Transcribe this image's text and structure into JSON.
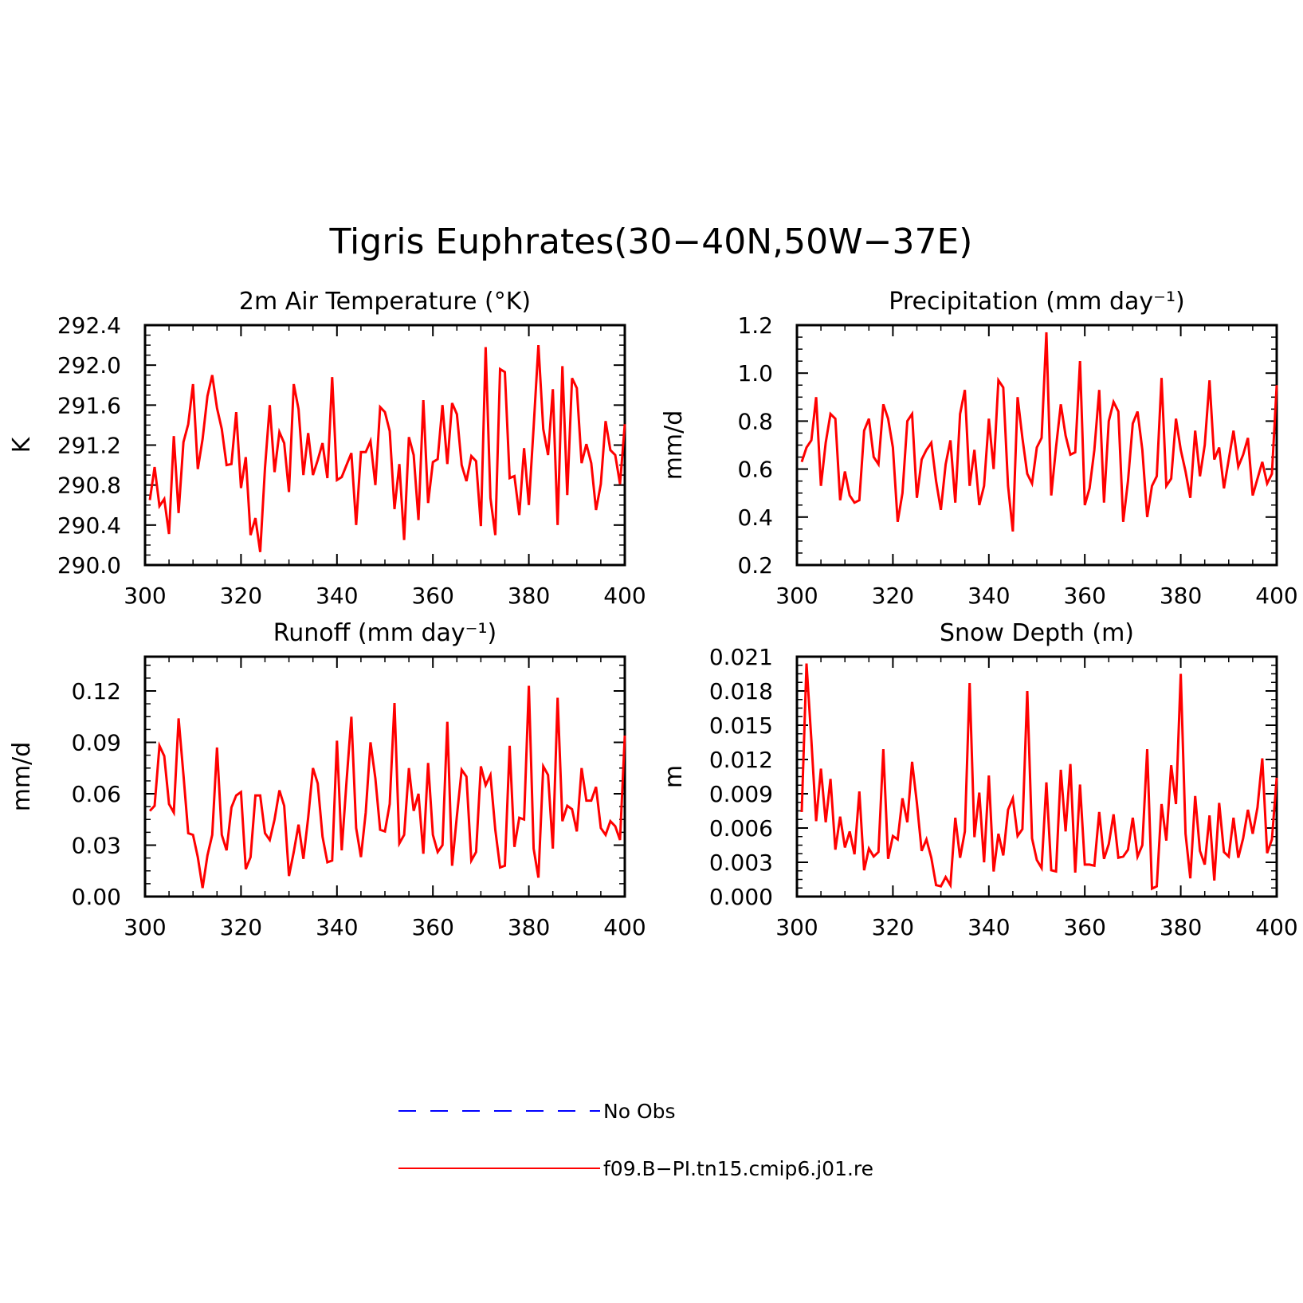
{
  "figure": {
    "title": "Tigris Euphrates(30−40N,50W−37E)"
  },
  "legend": {
    "placement": "bottom-center",
    "entries": [
      {
        "label": "No Obs",
        "color": "#0000ff",
        "style": "dashed"
      },
      {
        "label": "f09.B−PI.tn15.cmip6.j01.re",
        "color": "#ff0000",
        "style": "solid"
      }
    ]
  },
  "chart_data": [
    {
      "type": "line",
      "title": "2m Air Temperature (°K)",
      "xlabel": "",
      "ylabel": "K",
      "xlim": [
        300,
        400
      ],
      "ylim": [
        290.0,
        292.4
      ],
      "xticks": [
        300,
        320,
        340,
        360,
        380,
        400
      ],
      "yticks": [
        290.0,
        290.4,
        290.8,
        291.2,
        291.6,
        292.0,
        292.4
      ],
      "ytick_labels": [
        "290.0",
        "290.4",
        "290.8",
        "291.2",
        "291.6",
        "292.0",
        "292.4"
      ],
      "grid": false,
      "series": [
        {
          "color": "#ff0000",
          "x_start": 301,
          "x_step": 1,
          "values": [
            290.65,
            290.98,
            290.59,
            290.66,
            290.31,
            291.29,
            290.52,
            291.23,
            291.41,
            291.81,
            290.96,
            291.26,
            291.69,
            291.9,
            291.57,
            291.36,
            291.0,
            291.01,
            291.53,
            290.77,
            291.08,
            290.3,
            290.47,
            290.13,
            290.97,
            291.6,
            290.93,
            291.33,
            291.22,
            290.73,
            291.81,
            291.56,
            290.9,
            291.32,
            290.9,
            291.05,
            291.22,
            290.87,
            291.88,
            290.85,
            290.88,
            291.0,
            291.12,
            290.4,
            291.13,
            291.13,
            291.24,
            290.8,
            291.58,
            291.53,
            291.34,
            290.56,
            291.01,
            290.25,
            291.28,
            291.1,
            290.45,
            291.65,
            290.62,
            291.03,
            291.06,
            291.6,
            291.01,
            291.62,
            291.51,
            291.0,
            290.84,
            291.09,
            291.04,
            290.39,
            292.18,
            290.67,
            290.3,
            291.96,
            291.93,
            290.87,
            290.89,
            290.5,
            291.17,
            290.6,
            291.38,
            292.2,
            291.36,
            291.1,
            291.76,
            290.4,
            291.99,
            290.7,
            291.87,
            291.77,
            291.02,
            291.21,
            291.02,
            290.55,
            290.81,
            291.44,
            291.15,
            291.1,
            290.81,
            291.41
          ]
        }
      ]
    },
    {
      "type": "line",
      "title": "Precipitation (mm day⁻¹)",
      "xlabel": "",
      "ylabel": "mm/d",
      "xlim": [
        300,
        400
      ],
      "ylim": [
        0.2,
        1.2
      ],
      "xticks": [
        300,
        320,
        340,
        360,
        380,
        400
      ],
      "yticks": [
        0.2,
        0.4,
        0.6,
        0.8,
        1.0,
        1.2
      ],
      "ytick_labels": [
        "0.2",
        "0.4",
        "0.6",
        "0.8",
        "1.0",
        "1.2"
      ],
      "grid": false,
      "series": [
        {
          "color": "#ff0000",
          "x_start": 301,
          "x_step": 1,
          "values": [
            0.63,
            0.69,
            0.72,
            0.9,
            0.53,
            0.71,
            0.83,
            0.81,
            0.47,
            0.59,
            0.49,
            0.46,
            0.47,
            0.76,
            0.81,
            0.65,
            0.62,
            0.87,
            0.81,
            0.69,
            0.38,
            0.5,
            0.8,
            0.83,
            0.48,
            0.64,
            0.68,
            0.71,
            0.55,
            0.43,
            0.62,
            0.72,
            0.46,
            0.83,
            0.93,
            0.53,
            0.68,
            0.45,
            0.53,
            0.81,
            0.6,
            0.97,
            0.94,
            0.53,
            0.34,
            0.9,
            0.73,
            0.58,
            0.54,
            0.69,
            0.73,
            1.17,
            0.49,
            0.69,
            0.87,
            0.74,
            0.66,
            0.67,
            1.05,
            0.45,
            0.52,
            0.68,
            0.93,
            0.46,
            0.8,
            0.88,
            0.84,
            0.38,
            0.55,
            0.79,
            0.84,
            0.68,
            0.4,
            0.53,
            0.57,
            0.98,
            0.53,
            0.56,
            0.81,
            0.68,
            0.59,
            0.48,
            0.76,
            0.57,
            0.7,
            0.97,
            0.64,
            0.69,
            0.52,
            0.64,
            0.76,
            0.61,
            0.66,
            0.73,
            0.49,
            0.56,
            0.63,
            0.54,
            0.58,
            0.95
          ]
        }
      ]
    },
    {
      "type": "line",
      "title": "Runoff (mm day⁻¹)",
      "xlabel": "",
      "ylabel": "mm/d",
      "xlim": [
        300,
        400
      ],
      "ylim": [
        0.0,
        0.14
      ],
      "xticks": [
        300,
        320,
        340,
        360,
        380,
        400
      ],
      "yticks": [
        0.0,
        0.03,
        0.06,
        0.09,
        0.12
      ],
      "ytick_labels": [
        "0.00",
        "0.03",
        "0.06",
        "0.09",
        "0.12"
      ],
      "grid": false,
      "series": [
        {
          "color": "#ff0000",
          "x_start": 301,
          "x_step": 1,
          "values": [
            0.05,
            0.053,
            0.088,
            0.082,
            0.054,
            0.049,
            0.104,
            0.071,
            0.037,
            0.036,
            0.023,
            0.005,
            0.024,
            0.036,
            0.087,
            0.036,
            0.027,
            0.052,
            0.059,
            0.061,
            0.016,
            0.023,
            0.059,
            0.059,
            0.037,
            0.033,
            0.045,
            0.062,
            0.053,
            0.012,
            0.026,
            0.042,
            0.022,
            0.046,
            0.075,
            0.066,
            0.035,
            0.02,
            0.021,
            0.091,
            0.027,
            0.067,
            0.105,
            0.04,
            0.023,
            0.049,
            0.09,
            0.069,
            0.039,
            0.038,
            0.054,
            0.113,
            0.031,
            0.036,
            0.075,
            0.05,
            0.06,
            0.025,
            0.078,
            0.036,
            0.026,
            0.03,
            0.102,
            0.018,
            0.047,
            0.074,
            0.07,
            0.021,
            0.026,
            0.076,
            0.065,
            0.071,
            0.039,
            0.017,
            0.018,
            0.088,
            0.029,
            0.046,
            0.045,
            0.123,
            0.028,
            0.011,
            0.076,
            0.071,
            0.028,
            0.116,
            0.044,
            0.053,
            0.051,
            0.038,
            0.075,
            0.056,
            0.056,
            0.064,
            0.04,
            0.036,
            0.044,
            0.041,
            0.033,
            0.094
          ]
        }
      ]
    },
    {
      "type": "line",
      "title": "Snow Depth (m)",
      "xlabel": "",
      "ylabel": "m",
      "xlim": [
        300,
        400
      ],
      "ylim": [
        0.0,
        0.021
      ],
      "xticks": [
        300,
        320,
        340,
        360,
        380,
        400
      ],
      "yticks": [
        0.0,
        0.003,
        0.006,
        0.009,
        0.012,
        0.015,
        0.018,
        0.021
      ],
      "ytick_labels": [
        "0.000",
        "0.003",
        "0.006",
        "0.009",
        "0.012",
        "0.015",
        "0.018",
        "0.021"
      ],
      "grid": false,
      "series": [
        {
          "color": "#ff0000",
          "x_start": 301,
          "x_step": 1,
          "values": [
            0.0074,
            0.0204,
            0.0137,
            0.0066,
            0.0112,
            0.0065,
            0.0103,
            0.0041,
            0.007,
            0.0043,
            0.0057,
            0.0037,
            0.0092,
            0.0023,
            0.0042,
            0.0035,
            0.0039,
            0.0129,
            0.0033,
            0.0053,
            0.005,
            0.0086,
            0.0065,
            0.0118,
            0.0082,
            0.004,
            0.005,
            0.0034,
            0.001,
            0.0009,
            0.0017,
            0.001,
            0.0069,
            0.0034,
            0.0057,
            0.0187,
            0.0052,
            0.0091,
            0.003,
            0.0106,
            0.0022,
            0.0055,
            0.0036,
            0.0076,
            0.0086,
            0.0053,
            0.0059,
            0.018,
            0.0051,
            0.0032,
            0.0025,
            0.01,
            0.0023,
            0.0022,
            0.0111,
            0.0057,
            0.0116,
            0.0021,
            0.0098,
            0.0028,
            0.0028,
            0.0027,
            0.0074,
            0.0033,
            0.0046,
            0.0072,
            0.0034,
            0.0035,
            0.0041,
            0.0069,
            0.0035,
            0.0045,
            0.0129,
            0.0007,
            0.0009,
            0.0081,
            0.0049,
            0.0115,
            0.0081,
            0.0195,
            0.0055,
            0.0016,
            0.0088,
            0.004,
            0.0028,
            0.0071,
            0.0014,
            0.0082,
            0.0039,
            0.0035,
            0.0069,
            0.0034,
            0.0051,
            0.0076,
            0.0055,
            0.0078,
            0.0121,
            0.0038,
            0.005,
            0.0104
          ]
        }
      ]
    }
  ]
}
